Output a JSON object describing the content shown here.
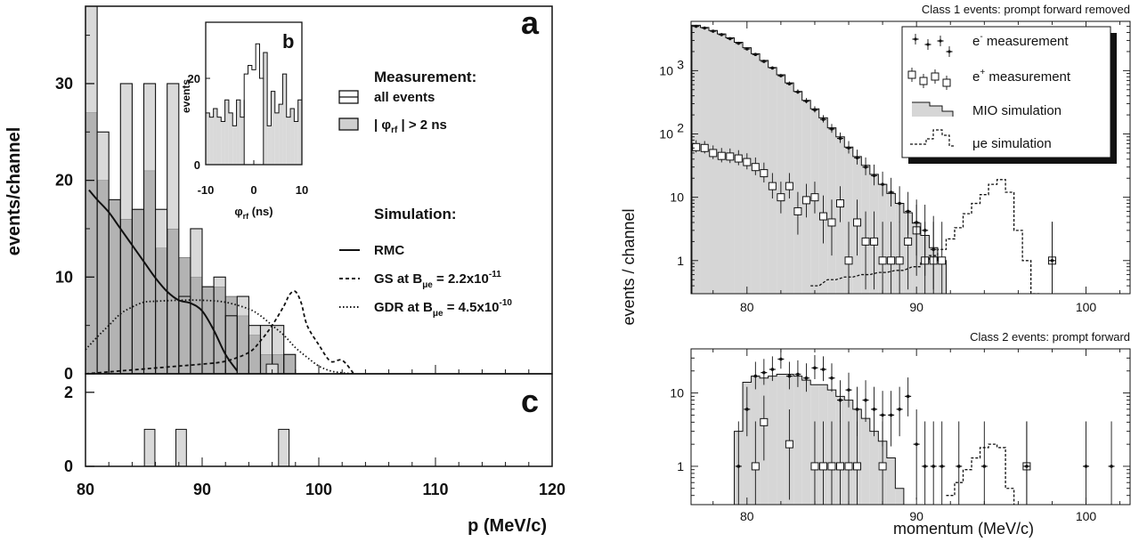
{
  "colors": {
    "ink": "#111111",
    "fill_light": "#d9d9d9",
    "fill_dark": "#b3b3b3",
    "frame": "#000000"
  },
  "left": {
    "panel_a_label": "a",
    "panel_b_label": "b",
    "panel_c_label": "c",
    "ylabel": "events/channel",
    "xlabel": "p (MeV/c)",
    "x_ticks": [
      "80",
      "90",
      "100",
      "110",
      "120"
    ],
    "ya_ticks": [
      "0",
      "10",
      "20",
      "30"
    ],
    "yc_ticks": [
      "0",
      "2"
    ],
    "legend": {
      "measurement_title": "Measurement:",
      "all_events": "all events",
      "phi_cut_main": "| φ",
      "phi_cut_sub": "rf",
      "phi_cut_tail": " | > 2 ns",
      "simulation_title": "Simulation:",
      "rmc": "RMC",
      "gs_main": "GS at B",
      "gs_sub": "μe",
      "gs_tail": " = 2.2x10",
      "gs_exp": "-11",
      "gdr_main": "GDR at B",
      "gdr_sub": "μe",
      "gdr_tail": " = 4.5x10",
      "gdr_exp": "-10"
    },
    "inset": {
      "ylabel": "events",
      "xlabel_main": "φ",
      "xlabel_sub": "rf",
      "xlabel_tail": " (ns)",
      "x_ticks": [
        "-10",
        "0",
        "10"
      ],
      "y_ticks": [
        "0",
        "20"
      ]
    }
  },
  "right": {
    "title1": "Class 1 events: prompt forward removed",
    "title2": "Class 2 events: prompt forward",
    "ylabel": "events / channel",
    "xlabel": "momentum  (MeV/c)",
    "x_ticks": [
      "80",
      "90",
      "100"
    ],
    "y1_ticks": [
      "1",
      "10",
      "10",
      "10"
    ],
    "y1_exps": [
      "2",
      "3"
    ],
    "y2_ticks": [
      "1",
      "10"
    ],
    "legend": {
      "eminus_main": "e",
      "eminus_sup": "-",
      "eminus_tail": " measurement",
      "eplus_main": "e",
      "eplus_sup": "+",
      "eplus_tail": " measurement",
      "mio": "MIO simulation",
      "mue": "μe simulation"
    }
  },
  "chart_data": [
    {
      "type": "bar",
      "panel": "a",
      "ylabel": "events/channel",
      "xlabel": "p (MeV/c)",
      "xlim": [
        80,
        120
      ],
      "ylim": [
        0,
        38
      ],
      "bin_width": 1,
      "series": [
        {
          "name": "all events",
          "bins_start": 80,
          "values": [
            38,
            25,
            18,
            30,
            17,
            30,
            17,
            30,
            8,
            15,
            9,
            10,
            6,
            8,
            5,
            5,
            5,
            2,
            0,
            0,
            0,
            0,
            0,
            0,
            0,
            0,
            0,
            0,
            0,
            0,
            0,
            0,
            0,
            0,
            0,
            0,
            0,
            0,
            0,
            0
          ]
        },
        {
          "name": "| φrf | > 2 ns",
          "bins_start": 80,
          "values": [
            27,
            20,
            18,
            16,
            17,
            21,
            13,
            15,
            12,
            10,
            9,
            9,
            8,
            6,
            4,
            2,
            2,
            2,
            0,
            0,
            0,
            0,
            0,
            0,
            0,
            0,
            0,
            0,
            0,
            0,
            0,
            0,
            0,
            0,
            0,
            0,
            0,
            0,
            0,
            0
          ]
        },
        {
          "name": "RMC",
          "kind": "curve",
          "x": [
            80.3,
            81,
            82,
            83,
            84,
            85,
            86,
            87,
            88,
            89,
            90,
            91,
            92,
            93
          ],
          "y": [
            19,
            18,
            16.7,
            15,
            13.3,
            11.6,
            9.9,
            8.5,
            7.6,
            7.3,
            6.5,
            4.5,
            2,
            0.3
          ]
        },
        {
          "name": "GS at Bμe = 2.2x10-11",
          "kind": "curve",
          "x": [
            80,
            84,
            88,
            90,
            92,
            94,
            95,
            96,
            97,
            97.5,
            98,
            98.5,
            99,
            100,
            101,
            102,
            103
          ],
          "y": [
            0,
            0.4,
            0.8,
            1,
            1.3,
            2.2,
            3.4,
            5,
            7,
            8.2,
            8.5,
            7.3,
            5,
            3,
            1.3,
            1.4,
            0
          ]
        },
        {
          "name": "GDR at Bμe = 4.5x10-10",
          "kind": "curve",
          "x": [
            80,
            81,
            82,
            83,
            84,
            85,
            86,
            88,
            90,
            92,
            94,
            95,
            96,
            97,
            98,
            99,
            100,
            101,
            102,
            103
          ],
          "y": [
            2.5,
            3.8,
            5,
            6.2,
            6.9,
            7.4,
            7.5,
            7.6,
            7.6,
            7.4,
            6.7,
            6,
            5,
            4,
            2.7,
            1.7,
            0.8,
            0.3,
            0.1,
            0
          ]
        }
      ]
    },
    {
      "type": "bar",
      "panel": "b (inset)",
      "ylabel": "events",
      "xlabel": "φrf (ns)",
      "xlim": [
        -10,
        10
      ],
      "ylim": [
        0,
        33
      ],
      "values": [
        12,
        11,
        13,
        11,
        10,
        15,
        12,
        9,
        15,
        11,
        21,
        23,
        22,
        28,
        20,
        26,
        9,
        17,
        12,
        14,
        21,
        11,
        13,
        10,
        15
      ],
      "shade_outer": true
    },
    {
      "type": "bar",
      "panel": "c",
      "xlim": [
        80,
        120
      ],
      "ylim": [
        0,
        2.5
      ],
      "bars": [
        {
          "x": 85.5,
          "value": 1
        },
        {
          "x": 88.2,
          "value": 1
        },
        {
          "x": 97,
          "value": 1
        }
      ]
    },
    {
      "type": "scatter",
      "panel": "Class 1 events: prompt forward removed",
      "yscale": "log",
      "xlim": [
        76.7,
        102.6
      ],
      "ylim": [
        0.3,
        6000
      ],
      "series": [
        {
          "name": "e- measurement",
          "x": [
            77,
            77.5,
            78,
            78.5,
            79,
            79.5,
            80,
            80.5,
            81,
            81.5,
            82,
            82.5,
            83,
            83.5,
            84,
            84.5,
            85,
            85.5,
            86,
            86.5,
            87,
            87.5,
            88,
            88.5,
            89,
            89.5,
            90,
            90.5,
            91,
            98
          ],
          "y": [
            5000,
            4700,
            4200,
            3700,
            3200,
            2700,
            2200,
            1800,
            1400,
            1100,
            830,
            620,
            460,
            330,
            240,
            170,
            120,
            85,
            60,
            42,
            30,
            22,
            16,
            12,
            8,
            6,
            4,
            3,
            1.5,
            1
          ]
        },
        {
          "name": "e+ measurement",
          "x": [
            77,
            77.5,
            78,
            78.5,
            79,
            79.5,
            80,
            80.5,
            81,
            81.5,
            82,
            82.5,
            83,
            83.5,
            84,
            84.5,
            85,
            85.5,
            86,
            86.5,
            87,
            87.5,
            88,
            88.5,
            89,
            89.5,
            90,
            90.5,
            91,
            91.5,
            98
          ],
          "y": [
            62,
            60,
            50,
            45,
            44,
            41,
            36,
            30,
            24,
            15,
            10,
            15,
            6,
            9,
            10,
            5,
            4,
            8,
            1,
            4,
            2,
            2,
            1,
            1,
            1,
            2,
            3,
            1,
            1,
            1,
            1
          ]
        },
        {
          "name": "MIO simulation",
          "x": [
            77,
            77.5,
            78,
            78.5,
            79,
            79.5,
            80,
            80.5,
            81,
            81.5,
            82,
            82.5,
            83,
            83.5,
            84,
            84.5,
            85,
            85.5,
            86,
            86.5,
            87,
            87.5,
            88,
            88.5,
            89,
            89.5,
            90,
            90.5,
            91,
            91.5
          ],
          "y": [
            5200,
            4800,
            4300,
            3800,
            3300,
            2800,
            2300,
            1850,
            1450,
            1120,
            860,
            640,
            470,
            340,
            250,
            180,
            125,
            90,
            62,
            44,
            32,
            23,
            16,
            11.5,
            8,
            5.7,
            3.9,
            2.5,
            1.6,
            1
          ]
        },
        {
          "name": "μe simulation",
          "x": [
            84,
            85,
            86,
            87,
            88,
            89,
            90,
            90.5,
            91,
            91.5,
            92,
            92.5,
            93,
            93.5,
            94,
            94.5,
            95,
            95.5,
            96,
            96.5,
            97
          ],
          "y": [
            0.4,
            0.5,
            0.55,
            0.6,
            0.65,
            0.7,
            0.8,
            0.95,
            1.2,
            1.5,
            2.2,
            3.3,
            5.5,
            8,
            11,
            16,
            19,
            12,
            3,
            1,
            0.3
          ]
        }
      ]
    },
    {
      "type": "scatter",
      "panel": "Class 2 events: prompt forward",
      "yscale": "log",
      "xlim": [
        76.7,
        102.6
      ],
      "ylim": [
        0.3,
        40
      ],
      "series": [
        {
          "name": "e- measurement",
          "x": [
            79.5,
            80,
            80.5,
            81,
            81.5,
            82,
            82.5,
            83,
            83.5,
            84,
            84.5,
            85,
            85.5,
            86,
            86.5,
            87,
            87.5,
            88,
            88.5,
            89,
            89.5,
            90,
            90.5,
            91,
            91.5,
            92.5,
            94,
            96.5,
            100,
            101.5
          ],
          "y": [
            1,
            6,
            17,
            19,
            21,
            29,
            17,
            18,
            16,
            22,
            21,
            16,
            8,
            11,
            6,
            8,
            6,
            5,
            5,
            6,
            9,
            2,
            1,
            1,
            1,
            1,
            1,
            1,
            1,
            1
          ]
        },
        {
          "name": "e+ measurement",
          "x": [
            80.5,
            81,
            82.5,
            84,
            84.5,
            85,
            85.5,
            86,
            86.5,
            88,
            96.5
          ],
          "y": [
            1,
            4,
            2,
            1,
            1,
            1,
            1,
            1,
            1,
            1,
            1
          ]
        },
        {
          "name": "MIO simulation",
          "x": [
            79.5,
            80,
            80.5,
            81,
            81.5,
            82,
            82.5,
            83,
            83.5,
            84,
            84.5,
            85,
            85.5,
            86,
            86.5,
            87,
            87.5,
            88,
            88.5,
            89
          ],
          "y": [
            3,
            14,
            17,
            16,
            17,
            18,
            18,
            17,
            15,
            13,
            13,
            11,
            9,
            8,
            6,
            4.5,
            3,
            2.2,
            1.3,
            0.5
          ]
        },
        {
          "name": "μe simulation",
          "x": [
            92,
            92.5,
            93,
            93.5,
            94,
            94.5,
            95,
            95.5
          ],
          "y": [
            0.4,
            0.6,
            0.9,
            1.3,
            1.8,
            2,
            1.8,
            0.5
          ]
        }
      ]
    }
  ]
}
